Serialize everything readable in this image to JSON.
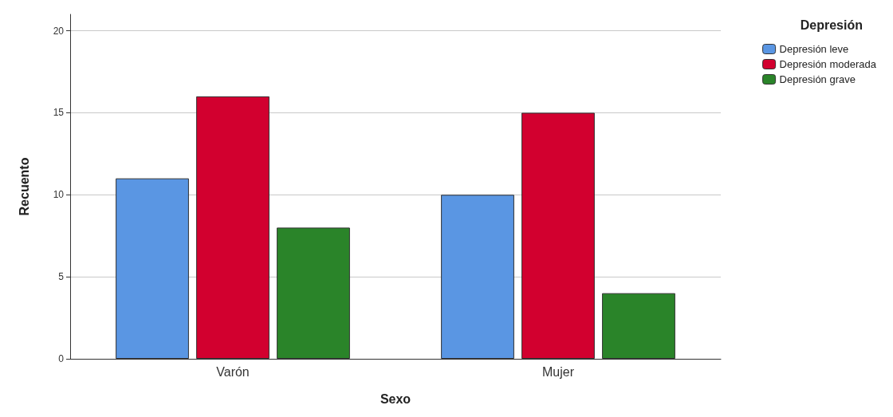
{
  "chart_data": {
    "type": "bar",
    "xlabel": "Sexo",
    "ylabel": "Recuento",
    "legend_title": "Depresión",
    "categories": [
      "Varón",
      "Mujer"
    ],
    "series": [
      {
        "name": "Depresión leve",
        "color": "#5a96e3",
        "values": [
          11,
          10
        ]
      },
      {
        "name": "Depresión moderada",
        "color": "#d2002f",
        "values": [
          16,
          15
        ]
      },
      {
        "name": "Depresión grave",
        "color": "#2a8429",
        "values": [
          8,
          4
        ]
      }
    ],
    "ylim": [
      0,
      21
    ],
    "yticks": [
      0,
      5,
      10,
      15,
      20
    ],
    "grid": "y",
    "legend": "top right"
  }
}
